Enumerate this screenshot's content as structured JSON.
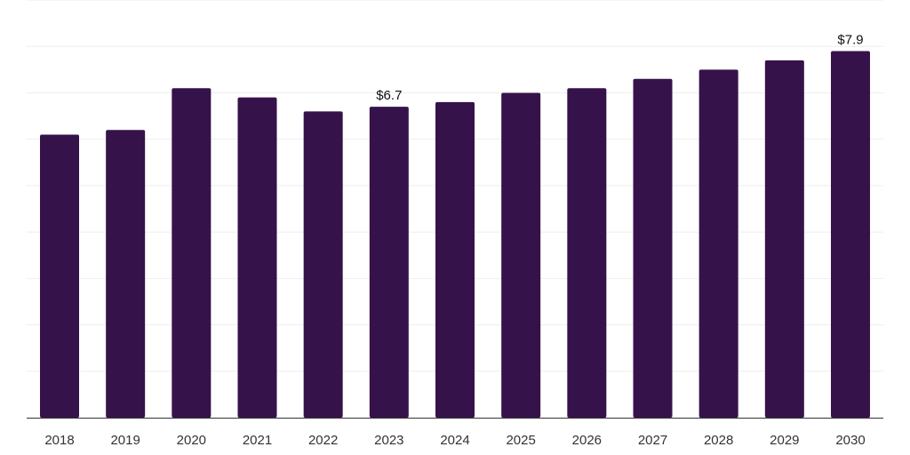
{
  "chart_data": {
    "type": "bar",
    "title": "",
    "xlabel": "",
    "ylabel": "",
    "categories": [
      "2018",
      "2019",
      "2020",
      "2021",
      "2022",
      "2023",
      "2024",
      "2025",
      "2026",
      "2027",
      "2028",
      "2029",
      "2030"
    ],
    "values": [
      6.1,
      6.2,
      7.1,
      6.9,
      6.6,
      6.7,
      6.8,
      7.0,
      7.1,
      7.3,
      7.5,
      7.7,
      7.9
    ],
    "ylim": [
      0,
      9
    ],
    "gridlines": 9,
    "labeled_points": [
      {
        "category": "2023",
        "label": "$6.7"
      },
      {
        "category": "2030",
        "label": "$7.9"
      }
    ],
    "colors": {
      "bar": "#36124a",
      "grid": "#eeeeee",
      "axis": "#333333"
    }
  }
}
